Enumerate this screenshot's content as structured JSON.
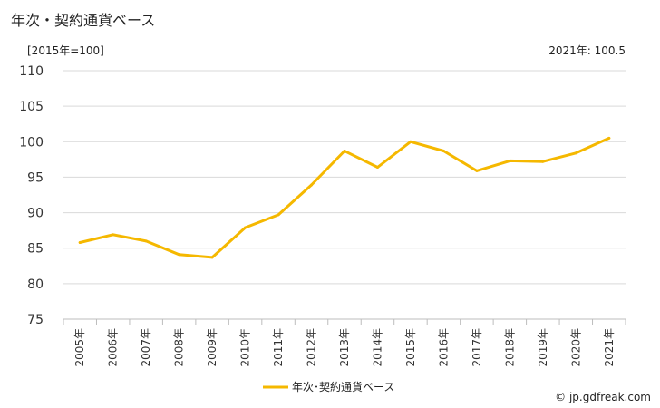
{
  "chart_data": {
    "type": "line",
    "title": "年次・契約通貨ベース",
    "unit_label": "[2015年=100]",
    "latest_label": "2021年: 100.5",
    "source": "© jp.gdfreak.com",
    "ylim": [
      75,
      110
    ],
    "yticks": [
      75,
      80,
      85,
      90,
      95,
      100,
      105,
      110
    ],
    "categories": [
      "2005年",
      "2006年",
      "2007年",
      "2008年",
      "2009年",
      "2010年",
      "2011年",
      "2012年",
      "2013年",
      "2014年",
      "2015年",
      "2016年",
      "2017年",
      "2018年",
      "2019年",
      "2020年",
      "2021年"
    ],
    "series": [
      {
        "name": "年次･契約通貨ベース",
        "color": "#f5b800",
        "values": [
          85.8,
          86.9,
          86.0,
          84.1,
          83.7,
          87.9,
          89.7,
          93.9,
          98.7,
          96.4,
          100.0,
          98.7,
          95.9,
          97.3,
          97.2,
          98.4,
          100.5
        ]
      }
    ]
  }
}
